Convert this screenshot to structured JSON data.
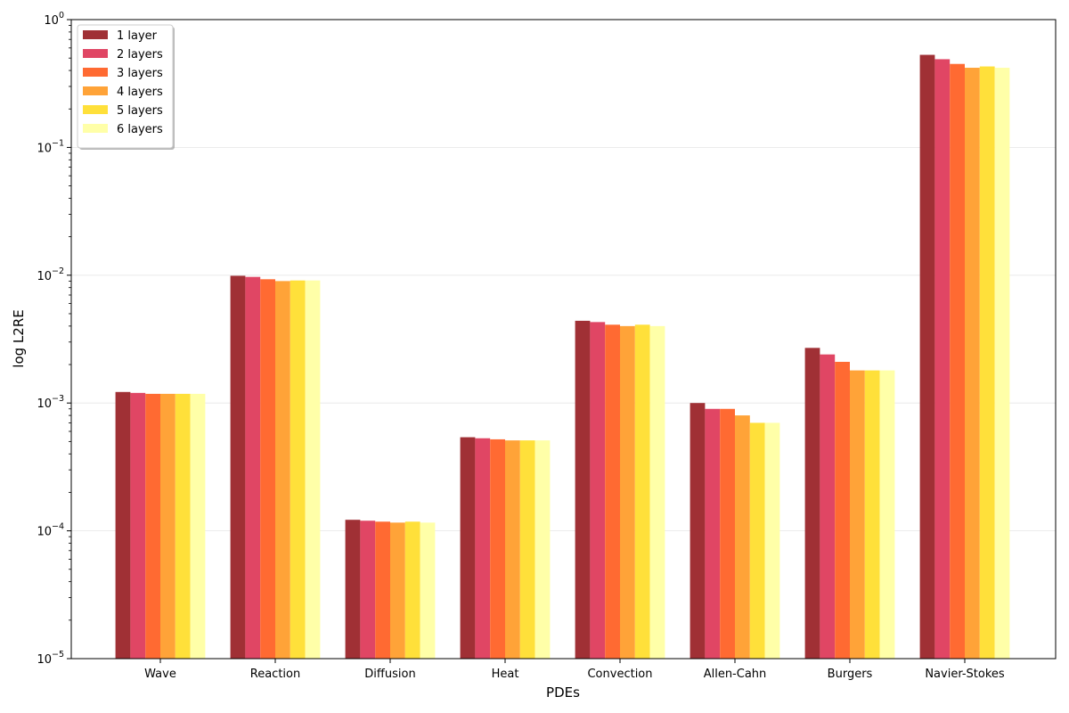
{
  "chart_data": {
    "type": "bar",
    "xlabel": "PDEs",
    "ylabel": "log L2RE",
    "yscale": "log",
    "ylim": [
      1e-05,
      1
    ],
    "grid": "y-major, light",
    "legend_placement": "top-left",
    "categories": [
      "Wave",
      "Reaction",
      "Diffusion",
      "Heat",
      "Convection",
      "Allen-Cahn",
      "Burgers",
      "Navier-Stokes"
    ],
    "y_ticks": [
      {
        "value": 1e-05,
        "base": "10",
        "exp": "−5"
      },
      {
        "value": 0.0001,
        "base": "10",
        "exp": "−4"
      },
      {
        "value": 0.001,
        "base": "10",
        "exp": "−3"
      },
      {
        "value": 0.01,
        "base": "10",
        "exp": "−2"
      },
      {
        "value": 0.1,
        "base": "10",
        "exp": "−1"
      },
      {
        "value": 1,
        "base": "10",
        "exp": "0"
      }
    ],
    "series": [
      {
        "name": "1 layer",
        "color": "#a03035",
        "values": [
          0.00122,
          0.0099,
          0.000122,
          0.00054,
          0.0044,
          0.001,
          0.0027,
          0.53
        ]
      },
      {
        "name": "2 layers",
        "color": "#e04664",
        "values": [
          0.0012,
          0.0097,
          0.00012,
          0.00053,
          0.0043,
          0.0009,
          0.0024,
          0.49
        ]
      },
      {
        "name": "3 layers",
        "color": "#ff6a32",
        "values": [
          0.00118,
          0.0093,
          0.000118,
          0.00052,
          0.0041,
          0.0009,
          0.0021,
          0.45
        ]
      },
      {
        "name": "4 layers",
        "color": "#ffa338",
        "values": [
          0.00118,
          0.009,
          0.000116,
          0.00051,
          0.004,
          0.0008,
          0.0018,
          0.42
        ]
      },
      {
        "name": "5 layers",
        "color": "#ffe03a",
        "values": [
          0.00118,
          0.0091,
          0.000118,
          0.00051,
          0.0041,
          0.0007,
          0.0018,
          0.43
        ]
      },
      {
        "name": "6 layers",
        "color": "#ffffa8",
        "values": [
          0.00118,
          0.0091,
          0.000116,
          0.00051,
          0.004,
          0.0007,
          0.0018,
          0.42
        ]
      }
    ]
  }
}
